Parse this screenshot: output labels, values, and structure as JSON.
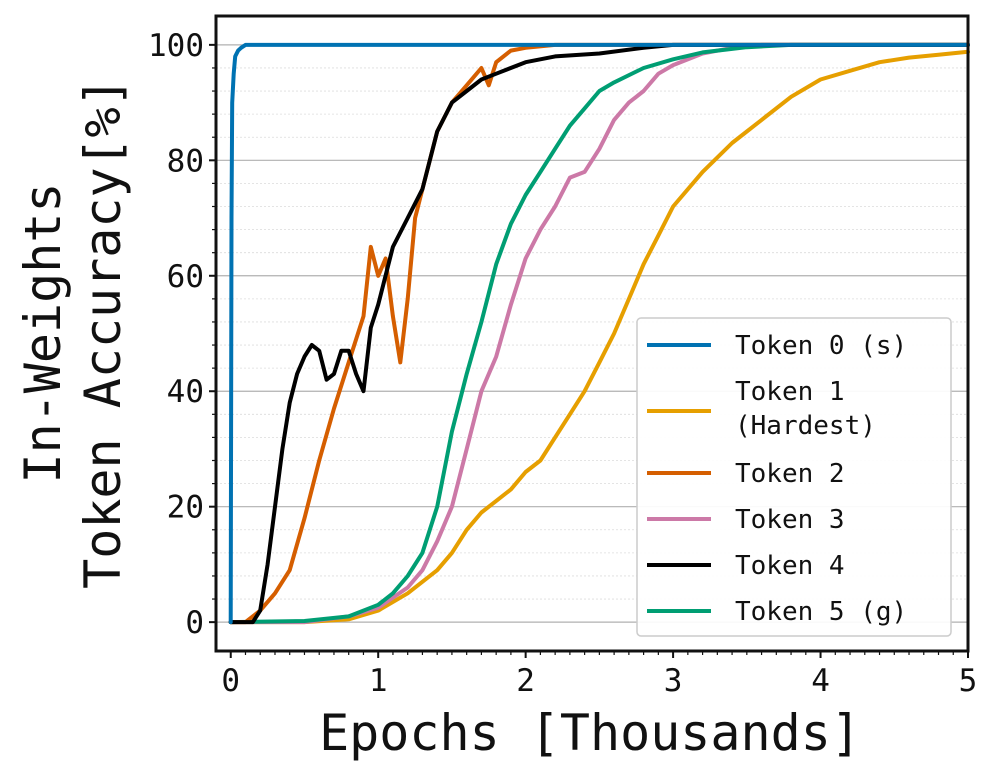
{
  "chart_data": {
    "type": "line",
    "xlabel": "Epochs [Thousands]",
    "ylabel_lines": [
      "In-Weights",
      "Token Accuracy[%]"
    ],
    "xlim": [
      -0.1,
      5
    ],
    "ylim": [
      -5,
      105
    ],
    "xticks": [
      0,
      1,
      2,
      3,
      4,
      5
    ],
    "xtick_labels": [
      "0",
      "1",
      "2",
      "3",
      "4",
      "5"
    ],
    "yticks": [
      0,
      20,
      40,
      60,
      80,
      100
    ],
    "ytick_labels": [
      "0",
      "20",
      "40",
      "60",
      "80",
      "100"
    ],
    "grid": true,
    "legend_position": "lower-right",
    "series": [
      {
        "name": "Token 0 (s)",
        "legend_lines": [
          "Token 0 (s)"
        ],
        "color": "#0072B2",
        "x": [
          0,
          0.005,
          0.01,
          0.02,
          0.03,
          0.05,
          0.07,
          0.1,
          0.2,
          1,
          2,
          3,
          4,
          5
        ],
        "y": [
          0,
          70,
          90,
          95,
          98,
          99,
          99.5,
          100,
          100,
          100,
          100,
          100,
          100,
          100
        ]
      },
      {
        "name": "Token 1 (Hardest)",
        "legend_lines": [
          "Token 1",
          "(Hardest)"
        ],
        "color": "#E69F00",
        "x": [
          0,
          0.5,
          0.8,
          1.0,
          1.2,
          1.4,
          1.5,
          1.6,
          1.7,
          1.8,
          1.9,
          2.0,
          2.1,
          2.2,
          2.3,
          2.4,
          2.5,
          2.6,
          2.7,
          2.8,
          2.9,
          3.0,
          3.2,
          3.4,
          3.5,
          3.6,
          3.8,
          4.0,
          4.2,
          4.4,
          4.6,
          4.8,
          5.0
        ],
        "y": [
          0,
          0,
          0.5,
          2,
          5,
          9,
          12,
          16,
          19,
          21,
          23,
          26,
          28,
          32,
          36,
          40,
          45,
          50,
          56,
          62,
          67,
          72,
          78,
          83,
          85,
          87,
          91,
          94,
          95.5,
          97,
          97.8,
          98.3,
          98.8
        ]
      },
      {
        "name": "Token 2",
        "legend_lines": [
          "Token 2"
        ],
        "color": "#D55E00",
        "x": [
          0,
          0.1,
          0.2,
          0.3,
          0.4,
          0.5,
          0.6,
          0.7,
          0.8,
          0.9,
          0.95,
          1.0,
          1.05,
          1.1,
          1.15,
          1.2,
          1.25,
          1.3,
          1.4,
          1.5,
          1.6,
          1.7,
          1.75,
          1.8,
          1.9,
          2.0,
          2.2,
          2.5,
          3.0,
          5.0
        ],
        "y": [
          0,
          0,
          2,
          5,
          9,
          18,
          28,
          37,
          45,
          53,
          65,
          60,
          63,
          53,
          45,
          56,
          70,
          75,
          85,
          90,
          93,
          96,
          93,
          97,
          99,
          99.5,
          100,
          100,
          100,
          100
        ]
      },
      {
        "name": "Token 3",
        "legend_lines": [
          "Token 3"
        ],
        "color": "#CC79A7",
        "x": [
          0,
          0.5,
          0.8,
          1.0,
          1.2,
          1.3,
          1.4,
          1.5,
          1.6,
          1.7,
          1.8,
          1.9,
          2.0,
          2.1,
          2.2,
          2.3,
          2.4,
          2.5,
          2.6,
          2.7,
          2.8,
          2.9,
          3.0,
          3.2,
          3.4,
          3.6,
          4.0,
          5.0
        ],
        "y": [
          0,
          0,
          1,
          2.5,
          6,
          9,
          14,
          20,
          30,
          40,
          46,
          55,
          63,
          68,
          72,
          77,
          78,
          82,
          87,
          90,
          92,
          95,
          96.5,
          98.5,
          99.5,
          100,
          100,
          100
        ]
      },
      {
        "name": "Token 4",
        "legend_lines": [
          "Token 4"
        ],
        "color": "#000000",
        "x": [
          0,
          0.15,
          0.2,
          0.25,
          0.3,
          0.35,
          0.4,
          0.45,
          0.5,
          0.55,
          0.6,
          0.65,
          0.7,
          0.75,
          0.8,
          0.85,
          0.9,
          0.95,
          1.0,
          1.1,
          1.2,
          1.3,
          1.4,
          1.5,
          1.6,
          1.7,
          1.8,
          2.0,
          2.2,
          2.5,
          2.8,
          3.0,
          3.5,
          4.0,
          5.0
        ],
        "y": [
          0,
          0,
          2,
          10,
          20,
          30,
          38,
          43,
          46,
          48,
          47,
          42,
          43,
          47,
          47,
          43,
          40,
          51,
          55,
          65,
          70,
          75,
          85,
          90,
          92,
          94,
          95,
          97,
          98,
          98.5,
          99.5,
          100,
          100,
          100,
          100
        ]
      },
      {
        "name": "Token 5 (g)",
        "legend_lines": [
          "Token 5 (g)"
        ],
        "color": "#009E73",
        "x": [
          0,
          0.5,
          0.8,
          1.0,
          1.1,
          1.2,
          1.3,
          1.4,
          1.5,
          1.6,
          1.7,
          1.8,
          1.9,
          2.0,
          2.1,
          2.2,
          2.3,
          2.4,
          2.5,
          2.6,
          2.8,
          3.0,
          3.2,
          3.4,
          3.5,
          3.8,
          4.0,
          5.0
        ],
        "y": [
          0,
          0.2,
          1,
          3,
          5,
          8,
          12,
          20,
          33,
          43,
          52,
          62,
          69,
          74,
          78,
          82,
          86,
          89,
          92,
          93.5,
          96,
          97.5,
          98.7,
          99.3,
          99.6,
          100,
          100,
          100
        ]
      }
    ]
  },
  "legend": {
    "items": [
      {
        "lines": [
          "Token 0 (s)"
        ]
      },
      {
        "lines": [
          "Token 1",
          "(Hardest)"
        ]
      },
      {
        "lines": [
          "Token 2"
        ]
      },
      {
        "lines": [
          "Token 3"
        ]
      },
      {
        "lines": [
          "Token 4"
        ]
      },
      {
        "lines": [
          "Token 5 (g)"
        ]
      }
    ]
  }
}
